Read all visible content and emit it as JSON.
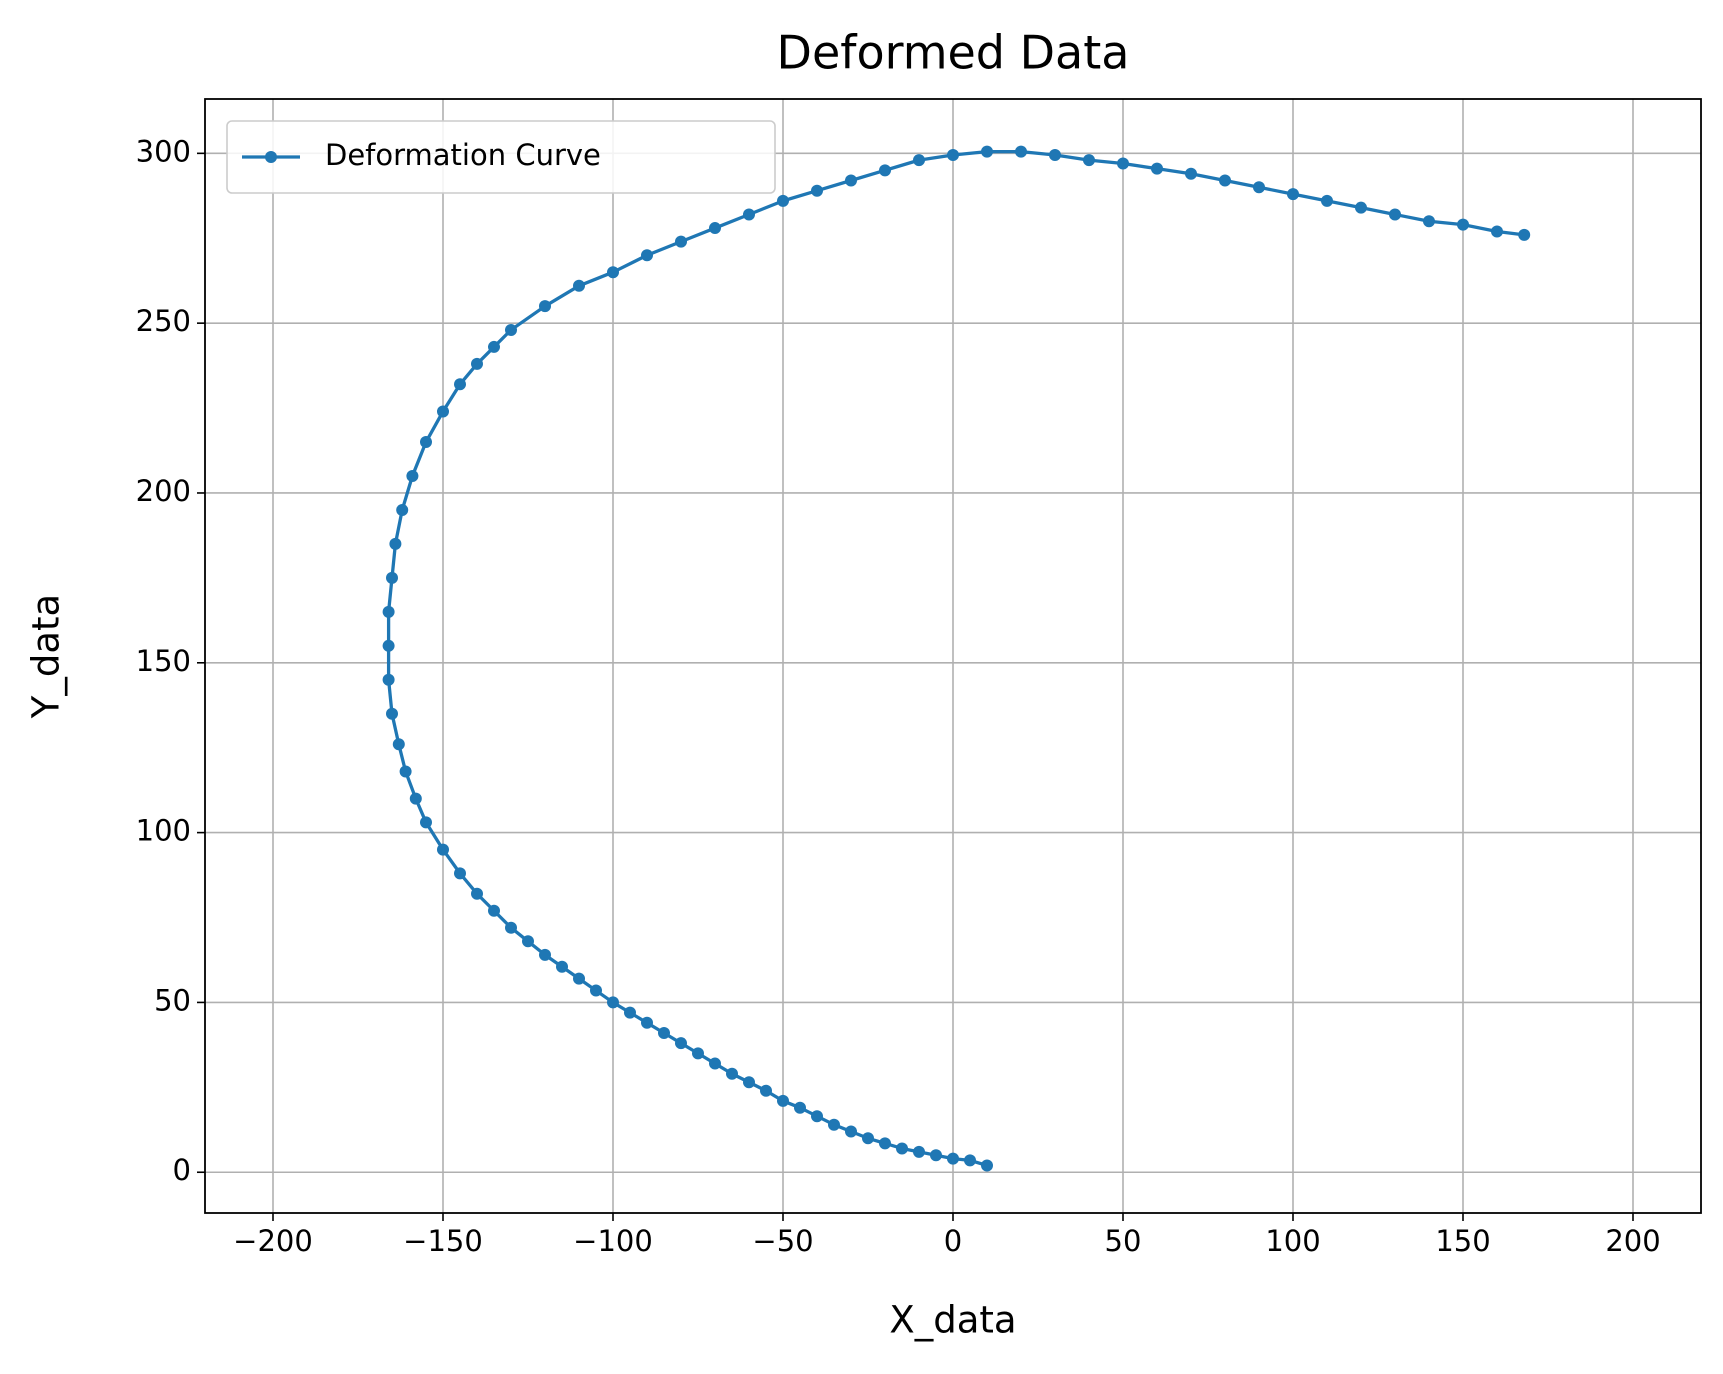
{
  "chart_data": {
    "type": "line",
    "title": "Deformed Data",
    "x_label": "X_data",
    "y_label": "Y_data",
    "legend_position": "upper left",
    "grid": true,
    "marker": "dot",
    "xlim": [
      -220,
      220
    ],
    "ylim": [
      -12,
      316
    ],
    "xticks": [
      {
        "value": -200,
        "label": "−200"
      },
      {
        "value": -150,
        "label": "−150"
      },
      {
        "value": -100,
        "label": "−100"
      },
      {
        "value": -50,
        "label": "−50"
      },
      0,
      50,
      100,
      150,
      200
    ],
    "yticks": [
      0,
      50,
      100,
      150,
      200,
      250,
      300
    ],
    "series": [
      {
        "name": "Deformation Curve",
        "color": "#1f77b4",
        "x": [
          10,
          5,
          0,
          -5,
          -10,
          -15,
          -20,
          -25,
          -30,
          -35,
          -40,
          -45,
          -50,
          -55,
          -60,
          -65,
          -70,
          -75,
          -80,
          -85,
          -90,
          -95,
          -100,
          -105,
          -110,
          -115,
          -120,
          -125,
          -130,
          -135,
          -140,
          -145,
          -150,
          -155,
          -158,
          -161,
          -163,
          -165,
          -166,
          -166,
          -166,
          -165,
          -164,
          -162,
          -159,
          -155,
          -150,
          -145,
          -140,
          -135,
          -130,
          -120,
          -110,
          -100,
          -90,
          -80,
          -70,
          -60,
          -50,
          -40,
          -30,
          -20,
          -10,
          0,
          10,
          20,
          30,
          40,
          50,
          60,
          70,
          80,
          90,
          100,
          110,
          120,
          130,
          140,
          150,
          160,
          168
        ],
        "values": [
          2,
          3.5,
          4,
          5,
          6,
          7,
          8.5,
          10,
          12,
          14,
          16.5,
          19,
          21,
          24,
          26.5,
          29,
          32,
          35,
          38,
          41,
          44,
          47,
          50,
          53.5,
          57,
          60.5,
          64,
          68,
          72,
          77,
          82,
          88,
          95,
          103,
          110,
          118,
          126,
          135,
          145,
          155,
          165,
          175,
          185,
          195,
          205,
          215,
          224,
          232,
          238,
          243,
          248,
          255,
          261,
          265,
          270,
          274,
          278,
          282,
          286,
          289,
          292,
          295,
          298,
          299.5,
          300.5,
          300.5,
          299.5,
          298,
          297,
          295.5,
          294,
          292,
          290,
          288,
          286,
          284,
          282,
          280,
          279,
          277,
          276
        ]
      }
    ]
  }
}
